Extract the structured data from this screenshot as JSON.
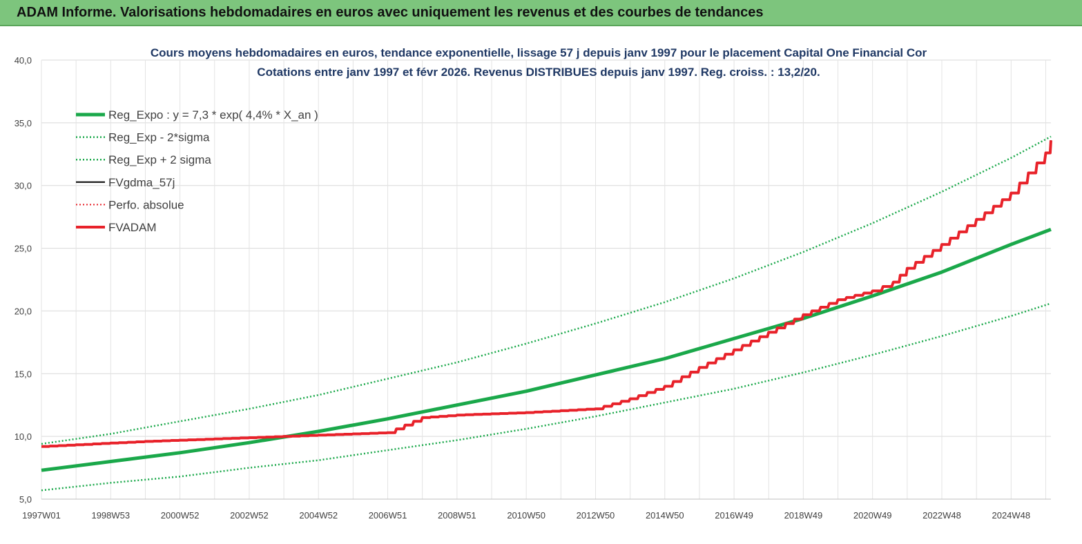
{
  "banner": {
    "title": "ADAM Informe. Valorisations hebdomadaires en euros avec uniquement les revenus et des courbes de tendances"
  },
  "chart_data": {
    "type": "line",
    "title": "Cours moyens hebdomadaires en euros, tendance exponentielle, lissage 57 j depuis janv 1997 pour le placement Capital One Financial Cor",
    "subtitle": "Cotations entre janv 1997 et févr 2026. Revenus DISTRIBUES depuis janv 1997. Reg. croiss. : 13,2/20.",
    "xlabel": "",
    "ylabel": "",
    "xlim": [
      1997.0,
      2026.15
    ],
    "ylim": [
      5,
      40
    ],
    "grid": true,
    "legend_position": "top-left",
    "y_ticks": [
      "5,0",
      "10,0",
      "15,0",
      "20,0",
      "25,0",
      "30,0",
      "35,0",
      "40,0"
    ],
    "x_ticks": [
      {
        "label": "1997W01",
        "x": 1997.0
      },
      {
        "label": "1998W53",
        "x": 1999.0
      },
      {
        "label": "2000W52",
        "x": 2001.0
      },
      {
        "label": "2002W52",
        "x": 2003.0
      },
      {
        "label": "2004W52",
        "x": 2005.0
      },
      {
        "label": "2006W51",
        "x": 2007.0
      },
      {
        "label": "2008W51",
        "x": 2009.0
      },
      {
        "label": "2010W50",
        "x": 2011.0
      },
      {
        "label": "2012W50",
        "x": 2013.0
      },
      {
        "label": "2014W50",
        "x": 2015.0
      },
      {
        "label": "2016W49",
        "x": 2017.0
      },
      {
        "label": "2018W49",
        "x": 2019.0
      },
      {
        "label": "2020W49",
        "x": 2021.0
      },
      {
        "label": "2022W48",
        "x": 2023.0
      },
      {
        "label": "2024W48",
        "x": 2025.0
      }
    ],
    "series": [
      {
        "name": "Reg_Expo : y = 7,3 * exp( 4,4% *  X_an )",
        "color": "#1aa84a",
        "style": "solid",
        "width": 5,
        "x": [
          1997.0,
          1999.0,
          2001.0,
          2003.0,
          2005.0,
          2007.0,
          2009.0,
          2011.0,
          2013.0,
          2015.0,
          2017.0,
          2019.0,
          2021.0,
          2023.0,
          2025.0,
          2026.15
        ],
        "y": [
          7.3,
          8.0,
          8.7,
          9.5,
          10.4,
          11.4,
          12.5,
          13.6,
          14.9,
          16.2,
          17.8,
          19.4,
          21.2,
          23.1,
          25.3,
          26.5
        ]
      },
      {
        "name": "Reg_Exp - 2*sigma",
        "color": "#1aa84a",
        "style": "dotted",
        "width": 2.5,
        "x": [
          1997.0,
          1999.0,
          2001.0,
          2003.0,
          2005.0,
          2007.0,
          2009.0,
          2011.0,
          2013.0,
          2015.0,
          2017.0,
          2019.0,
          2021.0,
          2023.0,
          2025.0,
          2026.15
        ],
        "y": [
          5.7,
          6.3,
          6.8,
          7.5,
          8.1,
          8.9,
          9.7,
          10.6,
          11.6,
          12.7,
          13.8,
          15.1,
          16.5,
          18.0,
          19.6,
          20.6
        ]
      },
      {
        "name": "Reg_Exp + 2 sigma",
        "color": "#1aa84a",
        "style": "dotted",
        "width": 2.5,
        "x": [
          1997.0,
          1999.0,
          2001.0,
          2003.0,
          2005.0,
          2007.0,
          2009.0,
          2011.0,
          2013.0,
          2015.0,
          2017.0,
          2019.0,
          2021.0,
          2023.0,
          2025.0,
          2026.15
        ],
        "y": [
          9.4,
          10.2,
          11.2,
          12.2,
          13.3,
          14.6,
          15.9,
          17.4,
          19.0,
          20.7,
          22.6,
          24.7,
          27.0,
          29.5,
          32.2,
          33.9
        ]
      },
      {
        "name": "FVgdma_57j",
        "color": "#000000",
        "style": "solid",
        "width": 2,
        "x": [
          1997.0,
          2000.0,
          2003.0,
          2007.0,
          2008.0,
          2009.0,
          2011.0,
          2013.0,
          2014.0,
          2015.0,
          2016.0,
          2017.0,
          2018.0,
          2019.0,
          2020.0,
          2021.0,
          2021.6,
          2022.0,
          2023.0,
          2024.0,
          2025.0,
          2026.0,
          2026.15
        ],
        "y": [
          9.2,
          9.6,
          9.9,
          10.3,
          11.5,
          11.7,
          11.9,
          12.2,
          13.0,
          14.0,
          15.5,
          16.9,
          18.3,
          19.7,
          20.9,
          21.6,
          22.3,
          23.4,
          25.3,
          27.3,
          29.4,
          32.6,
          33.6
        ]
      },
      {
        "name": "Perfo. absolue",
        "color": "#e8222a",
        "style": "dotted",
        "width": 2,
        "x": [
          1997.0,
          2000.0,
          2003.0,
          2007.0,
          2008.0,
          2009.0,
          2011.0,
          2013.0,
          2014.0,
          2015.0,
          2016.0,
          2017.0,
          2018.0,
          2019.0,
          2020.0,
          2021.0,
          2021.6,
          2022.0,
          2023.0,
          2024.0,
          2025.0,
          2026.0,
          2026.15
        ],
        "y": [
          9.2,
          9.6,
          9.9,
          10.3,
          11.5,
          11.7,
          11.9,
          12.2,
          13.0,
          14.0,
          15.5,
          16.9,
          18.3,
          19.7,
          20.9,
          21.6,
          22.3,
          23.4,
          25.3,
          27.3,
          29.4,
          32.6,
          33.6
        ]
      },
      {
        "name": "FVADAM",
        "color": "#e8222a",
        "style": "solid",
        "width": 4,
        "x": [
          1997.0,
          2000.0,
          2003.0,
          2007.0,
          2008.0,
          2009.0,
          2011.0,
          2013.0,
          2014.0,
          2015.0,
          2016.0,
          2017.0,
          2018.0,
          2019.0,
          2020.0,
          2021.0,
          2021.6,
          2022.0,
          2023.0,
          2024.0,
          2025.0,
          2026.0,
          2026.15
        ],
        "y": [
          9.2,
          9.6,
          9.9,
          10.3,
          11.5,
          11.7,
          11.9,
          12.2,
          13.0,
          14.0,
          15.5,
          16.9,
          18.3,
          19.7,
          20.9,
          21.6,
          22.3,
          23.4,
          25.3,
          27.3,
          29.4,
          32.6,
          33.6
        ]
      }
    ]
  }
}
